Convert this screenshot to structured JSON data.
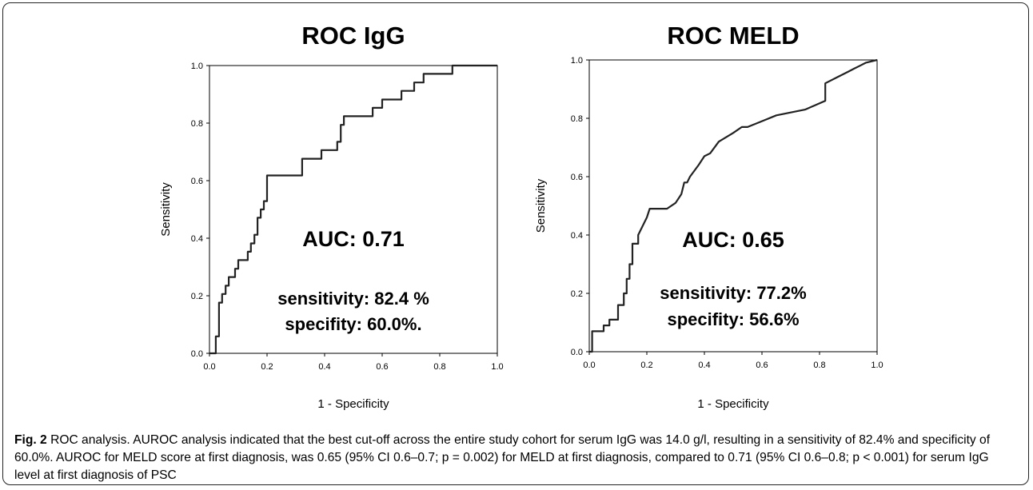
{
  "chart_data": [
    {
      "type": "line",
      "title": "ROC IgG",
      "xlabel": "1 - Specificity",
      "ylabel": "Sensitivity",
      "xlim": [
        0,
        1
      ],
      "ylim": [
        0,
        1
      ],
      "xticks": [
        "0.0",
        "0.2",
        "0.4",
        "0.6",
        "0.8",
        "1.0"
      ],
      "yticks": [
        "0.0",
        "0.2",
        "0.4",
        "0.6",
        "0.8",
        "1.0"
      ],
      "grid": false,
      "annotations": {
        "auc": "AUC: 0.71",
        "sensitivity": "sensitivity: 82.4 %",
        "specificity": "specifity: 60.0%."
      },
      "series": [
        {
          "x": [
            0,
            0.022,
            0.022,
            0.033,
            0.033,
            0.044,
            0.044,
            0.056,
            0.056,
            0.067,
            0.067,
            0.089,
            0.089,
            0.1,
            0.1,
            0.111,
            0.111,
            0.133,
            0.133,
            0.144,
            0.144,
            0.156,
            0.156,
            0.167,
            0.167,
            0.178,
            0.178,
            0.189,
            0.189,
            0.2,
            0.2,
            0.222,
            0.222,
            0.322,
            0.322,
            0.367,
            0.367,
            0.389,
            0.389,
            0.444,
            0.444,
            0.456,
            0.456,
            0.467,
            0.467,
            0.489,
            0.489,
            0.567,
            0.567,
            0.6,
            0.6,
            0.6,
            0.6,
            0.667,
            0.667,
            0.711,
            0.711,
            0.744,
            0.744,
            0.744,
            0.744,
            0.844,
            0.844,
            0.889,
            0.889,
            1.0
          ],
          "y": [
            0,
            0,
            0.059,
            0.059,
            0.176,
            0.176,
            0.206,
            0.206,
            0.235,
            0.235,
            0.265,
            0.265,
            0.294,
            0.294,
            0.324,
            0.324,
            0.324,
            0.324,
            0.353,
            0.353,
            0.382,
            0.382,
            0.412,
            0.412,
            0.471,
            0.471,
            0.5,
            0.5,
            0.529,
            0.529,
            0.618,
            0.618,
            0.618,
            0.618,
            0.676,
            0.676,
            0.676,
            0.676,
            0.706,
            0.706,
            0.735,
            0.735,
            0.794,
            0.794,
            0.824,
            0.824,
            0.824,
            0.824,
            0.853,
            0.853,
            0.882,
            0.882,
            0.882,
            0.882,
            0.912,
            0.912,
            0.941,
            0.941,
            0.941,
            0.941,
            0.971,
            0.971,
            1.0,
            1.0,
            1.0,
            1.0
          ]
        }
      ]
    },
    {
      "type": "line",
      "title": "ROC MELD",
      "xlabel": "1 - Specificity",
      "ylabel": "Sensitivity",
      "xlim": [
        0,
        1
      ],
      "ylim": [
        0,
        1
      ],
      "xticks": [
        "0.0",
        "0.2",
        "0.4",
        "0.6",
        "0.8",
        "1.0"
      ],
      "yticks": [
        "0.0",
        "0.2",
        "0.4",
        "0.6",
        "0.8",
        "1.0"
      ],
      "grid": false,
      "annotations": {
        "auc": "AUC: 0.65",
        "sensitivity": "sensitivity: 77.2%",
        "specificity": "specifity: 56.6%"
      },
      "series": [
        {
          "x": [
            0,
            0.01,
            0.01,
            0.05,
            0.05,
            0.07,
            0.07,
            0.1,
            0.1,
            0.12,
            0.12,
            0.13,
            0.13,
            0.14,
            0.14,
            0.15,
            0.15,
            0.17,
            0.17,
            0.19,
            0.2,
            0.21,
            0.27,
            0.3,
            0.32,
            0.33,
            0.34,
            0.35,
            0.38,
            0.4,
            0.42,
            0.45,
            0.5,
            0.53,
            0.55,
            0.6,
            0.65,
            0.7,
            0.75,
            0.82,
            0.82,
            0.86,
            0.9,
            0.92,
            0.94,
            0.96,
            1.0
          ],
          "y": [
            0,
            0,
            0.07,
            0.07,
            0.09,
            0.09,
            0.11,
            0.11,
            0.16,
            0.16,
            0.2,
            0.2,
            0.25,
            0.25,
            0.3,
            0.3,
            0.37,
            0.37,
            0.4,
            0.44,
            0.46,
            0.49,
            0.49,
            0.51,
            0.54,
            0.58,
            0.58,
            0.6,
            0.64,
            0.67,
            0.68,
            0.72,
            0.75,
            0.77,
            0.77,
            0.79,
            0.81,
            0.82,
            0.83,
            0.86,
            0.92,
            0.94,
            0.96,
            0.97,
            0.98,
            0.99,
            1.0
          ]
        }
      ]
    }
  ],
  "caption": {
    "label": "Fig. 2",
    "text": " ROC analysis. AUROC analysis indicated that the best cut-off across the entire study cohort for serum IgG was 14.0 g/l, resulting in a sensitivity of 82.4% and specificity of 60.0%. AUROC for MELD score at first diagnosis, was 0.65 (95% CI 0.6–0.7; p = 0.002) for MELD at first diagnosis, compared to 0.71 (95% CI 0.6–0.8; p < 0.001) for serum IgG level at first diagnosis of PSC"
  }
}
